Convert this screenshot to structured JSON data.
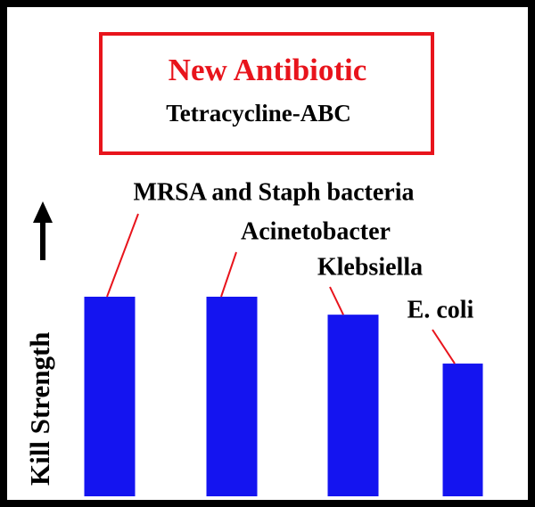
{
  "chart_data": {
    "type": "bar",
    "title": "New Antibiotic",
    "subtitle": "Tetracycline-ABC",
    "y_label": "Kill Strength",
    "categories": [
      "MRSA and Staph bacteria",
      "Acinetobacter",
      "Klebsiella",
      "E. coli"
    ],
    "values": [
      100,
      100,
      91,
      66.5
    ],
    "ylim": [
      0,
      100
    ],
    "color": "#1414f0",
    "title_color": "#e8141c"
  }
}
